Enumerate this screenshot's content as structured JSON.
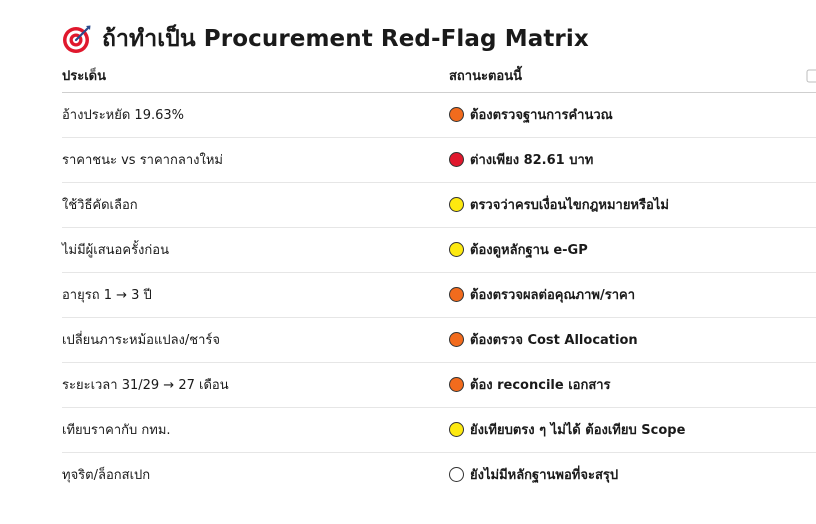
{
  "header": {
    "title": "ถ้าทำเป็น Procurement Red-Flag Matrix",
    "icon": "direct-hit-target-icon"
  },
  "table": {
    "columns": [
      "ประเด็น",
      "สถานะตอนนี้"
    ],
    "rows": [
      {
        "issue": "อ้างประหยัด 19.63%",
        "status": "ต้องตรวจฐานการคำนวณ",
        "color": "#f26b1d"
      },
      {
        "issue": "ราคาชนะ vs ราคากลางใหม่",
        "status": "ต่างเพียง 82.61 บาท",
        "color": "#e0182d"
      },
      {
        "issue": "ใช้วิธีคัดเลือก",
        "status": "ตรวจว่าครบเงื่อนไขกฎหมายหรือไม่",
        "color": "#fde910"
      },
      {
        "issue": "ไม่มีผู้เสนอครั้งก่อน",
        "status": "ต้องดูหลักฐาน e-GP",
        "color": "#fde910"
      },
      {
        "issue": "อายุรถ 1 → 3 ปี",
        "status": "ต้องตรวจผลต่อคุณภาพ/ราคา",
        "color": "#f26b1d"
      },
      {
        "issue": "เปลี่ยนภาระหม้อแปลง/ชาร์จ",
        "status": "ต้องตรวจ Cost Allocation",
        "color": "#f26b1d"
      },
      {
        "issue": "ระยะเวลา 31/29 → 27 เดือน",
        "status": "ต้อง reconcile เอกสาร",
        "color": "#f26b1d"
      },
      {
        "issue": "เทียบราคากับ กทม.",
        "status": "ยังเทียบตรง ๆ ไม่ได้ ต้องเทียบ Scope",
        "color": "#fde910"
      },
      {
        "issue": "ทุจริต/ล็อกสเปก",
        "status": "ยังไม่มีหลักฐานพอที่จะสรุป",
        "color": "#ffffff"
      }
    ]
  }
}
